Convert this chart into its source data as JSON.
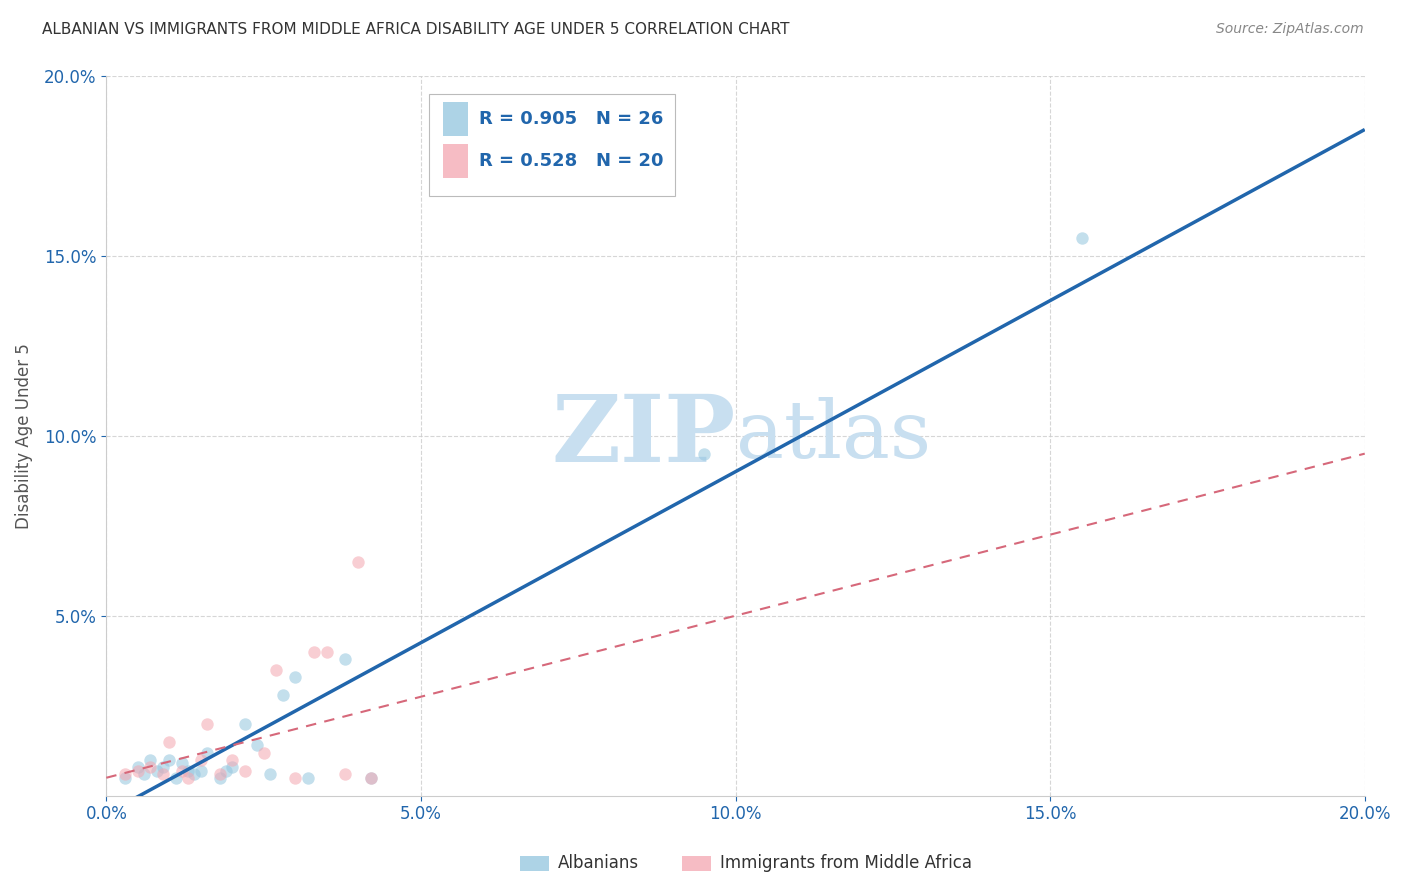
{
  "title": "ALBANIAN VS IMMIGRANTS FROM MIDDLE AFRICA DISABILITY AGE UNDER 5 CORRELATION CHART",
  "source": "Source: ZipAtlas.com",
  "ylabel": "Disability Age Under 5",
  "xlim": [
    0.0,
    0.2
  ],
  "ylim": [
    0.0,
    0.2
  ],
  "xtick_vals": [
    0.0,
    0.05,
    0.1,
    0.15,
    0.2
  ],
  "ytick_vals": [
    0.05,
    0.1,
    0.15,
    0.2
  ],
  "blue_R": "0.905",
  "blue_N": "26",
  "pink_R": "0.528",
  "pink_N": "20",
  "blue_scatter_x": [
    0.003,
    0.005,
    0.006,
    0.007,
    0.008,
    0.009,
    0.01,
    0.011,
    0.012,
    0.013,
    0.014,
    0.015,
    0.016,
    0.018,
    0.019,
    0.02,
    0.022,
    0.024,
    0.026,
    0.028,
    0.03,
    0.032,
    0.038,
    0.042,
    0.095,
    0.155
  ],
  "blue_scatter_y": [
    0.005,
    0.008,
    0.006,
    0.01,
    0.007,
    0.008,
    0.01,
    0.005,
    0.009,
    0.007,
    0.006,
    0.007,
    0.012,
    0.005,
    0.007,
    0.008,
    0.02,
    0.014,
    0.006,
    0.028,
    0.033,
    0.005,
    0.038,
    0.005,
    0.095,
    0.155
  ],
  "pink_scatter_x": [
    0.003,
    0.005,
    0.007,
    0.009,
    0.01,
    0.012,
    0.013,
    0.015,
    0.016,
    0.018,
    0.02,
    0.022,
    0.025,
    0.027,
    0.03,
    0.033,
    0.035,
    0.038,
    0.04,
    0.042
  ],
  "pink_scatter_y": [
    0.006,
    0.007,
    0.008,
    0.006,
    0.015,
    0.007,
    0.005,
    0.01,
    0.02,
    0.006,
    0.01,
    0.007,
    0.012,
    0.035,
    0.005,
    0.04,
    0.04,
    0.006,
    0.065,
    0.005
  ],
  "blue_line_x": [
    0.0,
    0.2
  ],
  "blue_line_y": [
    -0.005,
    0.185
  ],
  "pink_line_x": [
    0.0,
    0.2
  ],
  "pink_line_y": [
    0.005,
    0.095
  ],
  "scatter_alpha": 0.55,
  "scatter_size": 80,
  "blue_color": "#92c5de",
  "pink_color": "#f4a6b0",
  "blue_line_color": "#2166ac",
  "pink_line_color": "#d6687a",
  "text_color": "#2166ac",
  "watermark_color": "#c8dff0",
  "background_color": "#ffffff"
}
